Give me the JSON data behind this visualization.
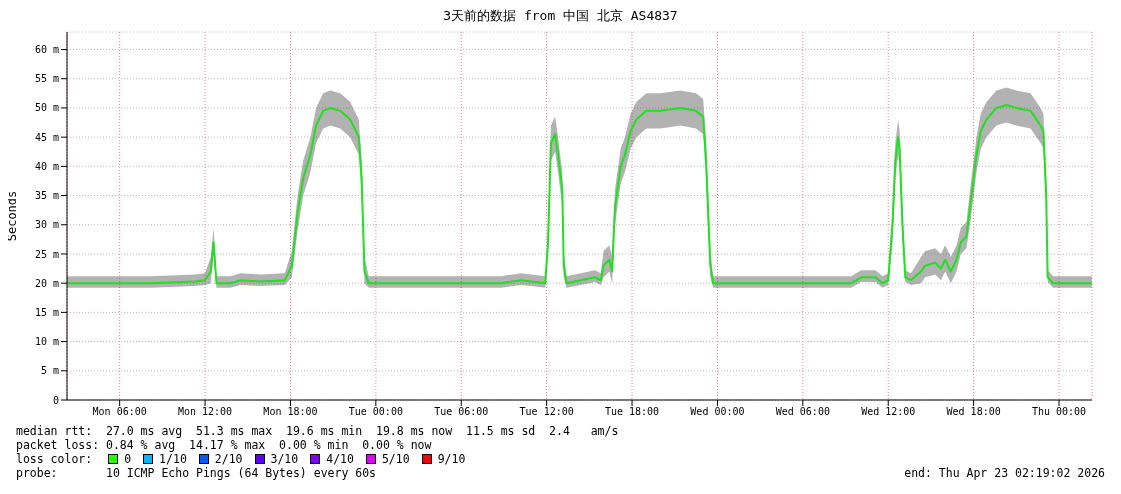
{
  "chart_data": {
    "type": "line",
    "title": "3天前的数据 from 中国 北京 AS4837",
    "ylabel": "Seconds",
    "x": [
      "2026-04-20T02:18",
      "2026-04-20T04:36",
      "2026-04-20T08:12",
      "2026-04-20T11:18",
      "2026-04-20T12:00",
      "2026-04-20T12:24",
      "2026-04-20T12:36",
      "2026-04-20T12:48",
      "2026-04-20T13:48",
      "2026-04-20T14:30",
      "2026-04-20T15:54",
      "2026-04-20T17:36",
      "2026-04-20T18:06",
      "2026-04-20T18:30",
      "2026-04-20T18:54",
      "2026-04-20T19:24",
      "2026-04-20T19:48",
      "2026-04-20T20:18",
      "2026-04-20T20:48",
      "2026-04-20T21:30",
      "2026-04-20T22:12",
      "2026-04-20T22:48",
      "2026-04-20T23:00",
      "2026-04-20T23:12",
      "2026-04-20T23:30",
      "2026-04-21T01:42",
      "2026-04-21T05:12",
      "2026-04-21T08:48",
      "2026-04-21T10:12",
      "2026-04-21T10:54",
      "2026-04-21T11:54",
      "2026-04-21T12:06",
      "2026-04-21T12:18",
      "2026-04-21T12:36",
      "2026-04-21T12:48",
      "2026-04-21T13:06",
      "2026-04-21T13:12",
      "2026-04-21T13:24",
      "2026-04-21T14:24",
      "2026-04-21T15:24",
      "2026-04-21T15:48",
      "2026-04-21T16:00",
      "2026-04-21T16:24",
      "2026-04-21T16:36",
      "2026-04-21T16:48",
      "2026-04-21T17:12",
      "2026-04-21T17:30",
      "2026-04-21T17:54",
      "2026-04-21T18:18",
      "2026-04-21T19:00",
      "2026-04-21T20:00",
      "2026-04-21T21:24",
      "2026-04-21T22:30",
      "2026-04-21T23:00",
      "2026-04-21T23:12",
      "2026-04-21T23:30",
      "2026-04-21T23:42",
      "2026-04-22T02:18",
      "2026-04-22T05:54",
      "2026-04-22T09:24",
      "2026-04-22T10:06",
      "2026-04-22T11:06",
      "2026-04-22T11:36",
      "2026-04-22T12:00",
      "2026-04-22T12:18",
      "2026-04-22T12:30",
      "2026-04-22T12:42",
      "2026-04-22T12:48",
      "2026-04-22T13:00",
      "2026-04-22T13:12",
      "2026-04-22T13:36",
      "2026-04-22T14:18",
      "2026-04-22T14:36",
      "2026-04-22T15:18",
      "2026-04-22T15:42",
      "2026-04-22T16:00",
      "2026-04-22T16:24",
      "2026-04-22T16:48",
      "2026-04-22T17:06",
      "2026-04-22T17:30",
      "2026-04-22T17:48",
      "2026-04-22T18:12",
      "2026-04-22T18:30",
      "2026-04-22T18:54",
      "2026-04-22T19:36",
      "2026-04-22T20:18",
      "2026-04-22T21:00",
      "2026-04-22T22:00",
      "2026-04-22T22:42",
      "2026-04-22T22:54",
      "2026-04-22T23:06",
      "2026-04-22T23:12",
      "2026-04-22T23:36",
      "2026-04-23T02:18"
    ],
    "series": [
      {
        "color": "#20e020",
        "values": [
          20,
          20,
          20,
          20.3,
          20.5,
          22,
          27,
          20,
          20,
          20.5,
          20.3,
          20.5,
          23,
          32,
          38,
          42,
          47,
          49.5,
          50,
          49.5,
          48,
          45,
          38,
          22,
          20,
          20,
          20,
          20,
          20.5,
          20.3,
          20,
          27,
          44,
          45.5,
          42,
          36,
          23,
          20,
          20.5,
          21,
          20.5,
          23,
          24,
          22,
          33,
          40,
          42,
          46,
          48,
          49.5,
          49.5,
          50,
          49.5,
          48.5,
          41,
          23,
          20,
          20,
          20,
          20,
          21,
          21,
          20,
          20.5,
          30,
          41,
          45,
          43,
          30,
          21,
          20.5,
          22,
          23,
          23.5,
          22.5,
          24,
          22,
          24,
          27,
          28,
          34,
          42,
          46,
          48,
          50,
          50.5,
          50,
          49.5,
          47,
          46,
          35,
          21,
          20,
          20
        ],
        "lower": [
          19.2,
          19.2,
          19.2,
          19.5,
          19.7,
          20,
          25,
          19.2,
          19.2,
          19.7,
          19.5,
          19.7,
          21,
          29,
          35,
          39,
          44,
          46.5,
          47,
          46.5,
          45,
          42,
          35,
          20,
          19.2,
          19.2,
          19.2,
          19.2,
          19.7,
          19.5,
          19.2,
          25,
          41,
          42.5,
          39,
          33,
          21,
          19.2,
          19.7,
          20.2,
          19.7,
          21,
          22,
          20,
          30,
          37,
          39,
          43,
          45,
          46.5,
          46.5,
          47,
          46.5,
          45.5,
          38,
          21,
          19.2,
          19.2,
          19.2,
          19.2,
          20.2,
          20.2,
          19.2,
          19.7,
          27,
          38,
          42,
          40,
          27,
          20.2,
          19.7,
          20,
          21,
          21.5,
          20.5,
          22,
          20,
          22,
          25,
          26,
          31,
          39,
          43,
          45,
          47,
          47.5,
          47,
          46.5,
          44,
          43,
          32,
          20.2,
          19.2,
          19.2
        ],
        "upper": [
          21.2,
          21.2,
          21.2,
          21.5,
          21.7,
          24.5,
          29.5,
          21.2,
          21.2,
          21.7,
          21.5,
          21.7,
          25.5,
          35,
          41,
          45,
          50,
          52.5,
          53,
          52.5,
          51,
          48,
          41,
          24.5,
          21.2,
          21.2,
          21.2,
          21.2,
          21.7,
          21.5,
          21.2,
          29.5,
          47,
          48.5,
          45,
          39,
          25.5,
          21.2,
          21.7,
          22.2,
          21.7,
          25.5,
          26.5,
          24.5,
          36,
          43,
          45,
          49,
          51,
          52.5,
          52.5,
          53,
          52.5,
          51.5,
          44,
          25.5,
          21.2,
          21.2,
          21.2,
          21.2,
          22.2,
          22.2,
          21.2,
          21.7,
          33,
          44,
          48,
          46,
          33,
          22.2,
          21.7,
          24.5,
          25.5,
          26,
          25,
          26.5,
          24.5,
          26.5,
          29.5,
          30.5,
          37,
          45,
          49,
          51,
          53,
          53.5,
          53,
          52.5,
          50,
          49,
          38,
          22.2,
          21.2,
          21.2
        ]
      }
    ],
    "xlim": [
      "2026-04-20T02:18",
      "2026-04-23T02:19"
    ],
    "xticks": [
      {
        "value": "2026-04-20T06:00",
        "label": "Mon 06:00"
      },
      {
        "value": "2026-04-20T12:00",
        "label": "Mon 12:00"
      },
      {
        "value": "2026-04-20T18:00",
        "label": "Mon 18:00"
      },
      {
        "value": "2026-04-21T00:00",
        "label": "Tue 00:00"
      },
      {
        "value": "2026-04-21T06:00",
        "label": "Tue 06:00"
      },
      {
        "value": "2026-04-21T12:00",
        "label": "Tue 12:00"
      },
      {
        "value": "2026-04-21T18:00",
        "label": "Tue 18:00"
      },
      {
        "value": "2026-04-22T00:00",
        "label": "Wed 00:00"
      },
      {
        "value": "2026-04-22T06:00",
        "label": "Wed 06:00"
      },
      {
        "value": "2026-04-22T12:00",
        "label": "Wed 12:00"
      },
      {
        "value": "2026-04-22T18:00",
        "label": "Wed 18:00"
      },
      {
        "value": "2026-04-23T00:00",
        "label": "Thu 00:00"
      }
    ],
    "ylim": [
      0,
      63
    ],
    "yticks": [
      0,
      {
        "value": 5,
        "label": "5 m"
      },
      {
        "value": 10,
        "label": "10 m"
      },
      {
        "value": 15,
        "label": "15 m"
      },
      {
        "value": 20,
        "label": "20 m"
      },
      {
        "value": 25,
        "label": "25 m"
      },
      {
        "value": 30,
        "label": "30 m"
      },
      {
        "value": 35,
        "label": "35 m"
      },
      {
        "value": 40,
        "label": "40 m"
      },
      {
        "value": 45,
        "label": "45 m"
      },
      {
        "value": 50,
        "label": "50 m"
      },
      {
        "value": 55,
        "label": "55 m"
      },
      {
        "value": 60,
        "label": "60 m"
      }
    ],
    "grid": true,
    "legend": false,
    "annotations": [
      "median rtt:  27.0 ms avg  51.3 ms max  19.6 ms min  19.8 ms now  11.5 ms sd  2.4   am/s",
      "packet loss: 0.84 % avg  14.17 % max  0.00 % min  0.00 % now",
      "loss color:",
      "0",
      "1/10",
      "2/10",
      "3/10",
      "4/10",
      "5/10",
      "9/10",
      "probe:       10 ICMP Echo Pings (64 Bytes) every 60s",
      "end: Thu Apr 23 02:19:02 2026"
    ]
  }
}
